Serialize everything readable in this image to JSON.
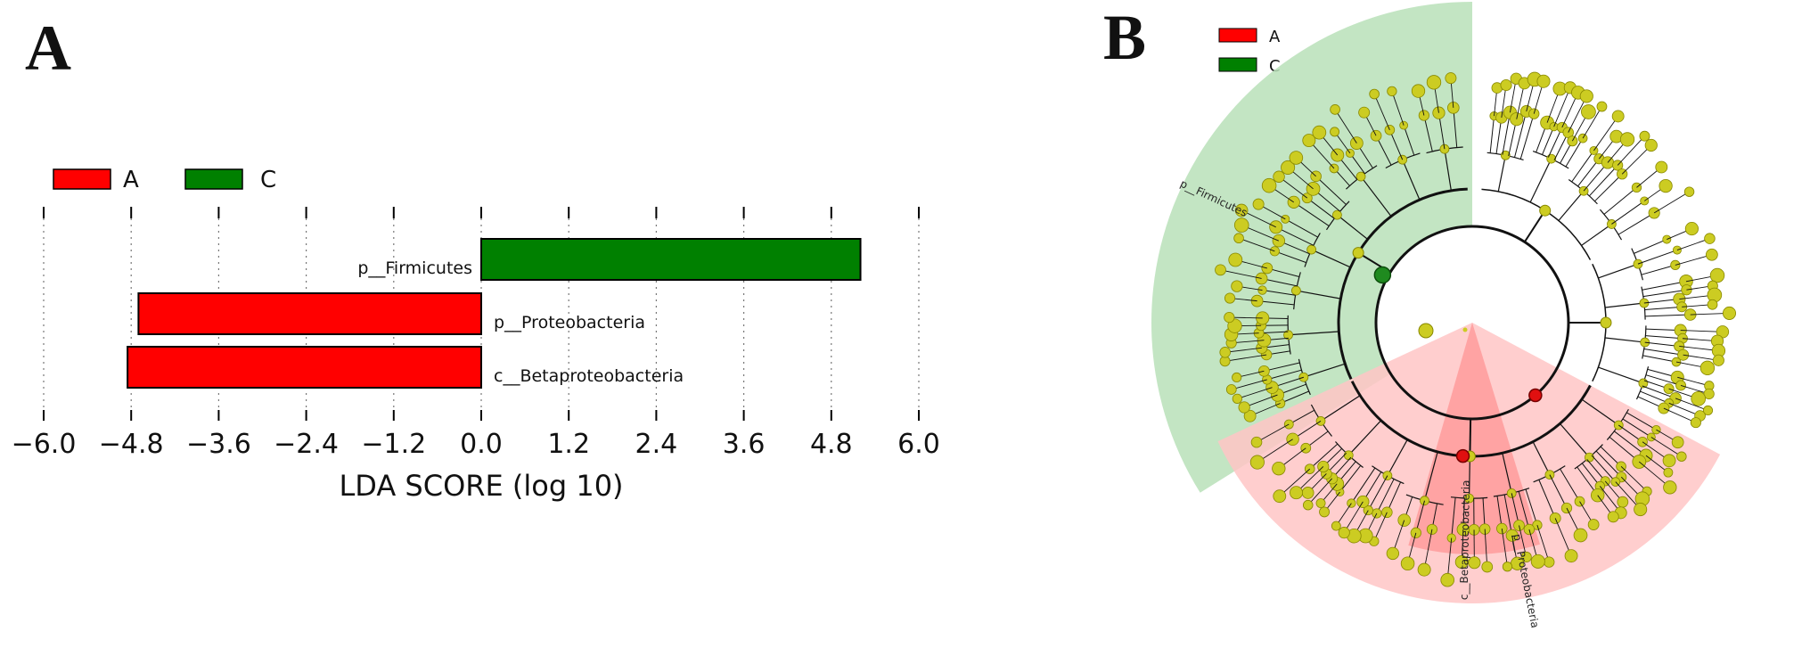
{
  "chart_data": [
    {
      "panel": "A",
      "type": "bar",
      "orientation": "horizontal",
      "legend": [
        {
          "label": "A",
          "color": "#ff0000"
        },
        {
          "label": "C",
          "color": "#008000"
        }
      ],
      "legend_position": "top-left",
      "categories": [
        "p__Firmicutes",
        "p__Proteobacteria",
        "c__Betaproteobacteria"
      ],
      "values": [
        5.2,
        -4.7,
        -4.85
      ],
      "groups": [
        "C",
        "A",
        "A"
      ],
      "xlabel": "LDA SCORE (log 10)",
      "xlim": [
        -6.0,
        6.0
      ],
      "xticks": [
        "−6.0",
        "−4.8",
        "−3.6",
        "−2.4",
        "−1.2",
        "0.0",
        "1.2",
        "2.4",
        "3.6",
        "4.8",
        "6.0"
      ],
      "grid": "vertical dotted"
    },
    {
      "panel": "B",
      "type": "cladogram",
      "legend": [
        {
          "label": "A",
          "color": "#ff0000"
        },
        {
          "label": "C",
          "color": "#008000"
        }
      ],
      "legend_position": "top-left",
      "clades": [
        {
          "label": "p__Firmicutes",
          "group": "C",
          "color": "#b9e0b9"
        },
        {
          "label": "p__Proteobacteria",
          "group": "A",
          "color": "#ffc6c6"
        },
        {
          "label": "c__Betaproteobacteria",
          "group": "A",
          "color": "#ff9f9f"
        }
      ],
      "node_color": "#cccc22"
    }
  ]
}
